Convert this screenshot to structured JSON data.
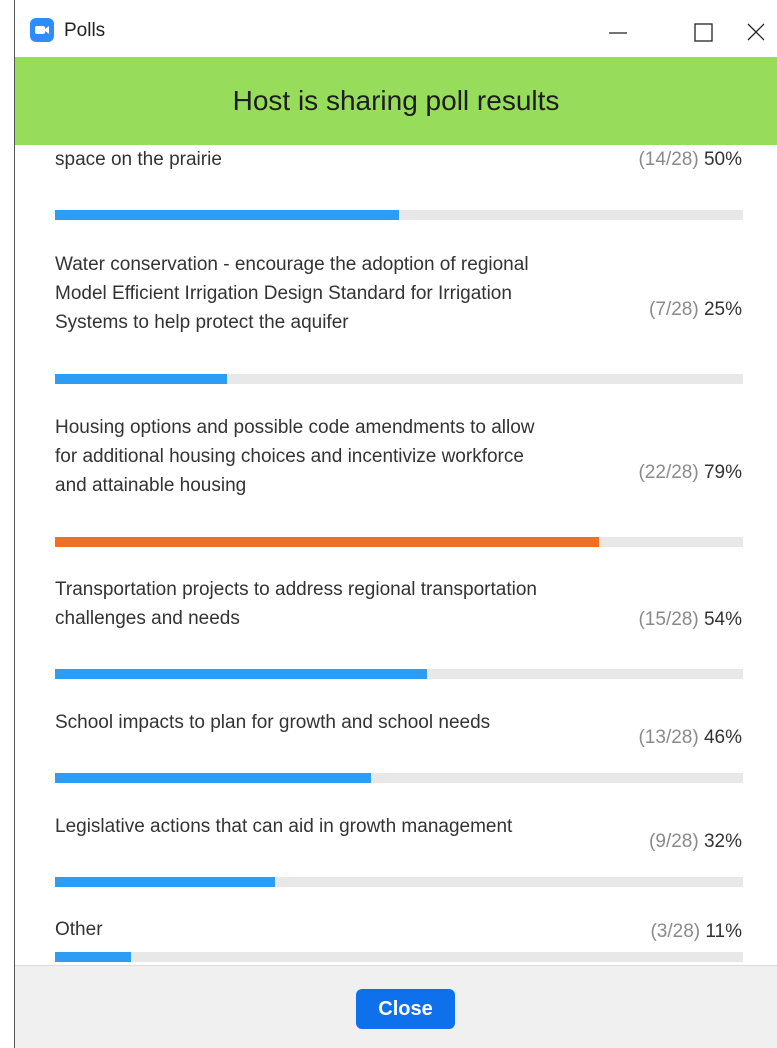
{
  "window": {
    "title": "Polls"
  },
  "banner": {
    "text": "Host is sharing poll results",
    "color": "#97dc5b"
  },
  "items": [
    {
      "lines": [
        "space on the prairie"
      ],
      "count": "(14/28)",
      "percent": 50,
      "percent_label": "50%",
      "bar_color": "#2d9cf4"
    },
    {
      "lines": [
        "Water conservation - encourage the adoption of regional",
        "Model Efficient Irrigation Design Standard for Irrigation",
        "Systems to help protect the aquifer"
      ],
      "count": "(7/28)",
      "percent": 25,
      "percent_label": "25%",
      "bar_color": "#2d9cf4"
    },
    {
      "lines": [
        "Housing options and possible code amendments to allow",
        "for additional housing choices and incentivize workforce",
        "and attainable housing"
      ],
      "count": "(22/28)",
      "percent": 79,
      "percent_label": "79%",
      "bar_color": "#ee7024"
    },
    {
      "lines": [
        "Transportation projects to address regional transportation",
        "challenges and needs"
      ],
      "count": "(15/28)",
      "percent": 54,
      "percent_label": "54%",
      "bar_color": "#2d9cf4"
    },
    {
      "lines": [
        "School impacts to plan for growth and school needs"
      ],
      "count": "(13/28)",
      "percent": 46,
      "percent_label": "46%",
      "bar_color": "#2d9cf4"
    },
    {
      "lines": [
        "Legislative actions that can aid in growth management"
      ],
      "count": "(9/28)",
      "percent": 32,
      "percent_label": "32%",
      "bar_color": "#2d9cf4"
    },
    {
      "lines": [
        "Other"
      ],
      "count": "(3/28)",
      "percent": 11,
      "percent_label": "11%",
      "bar_color": "#2d9cf4"
    }
  ],
  "footer": {
    "button": "Close"
  }
}
